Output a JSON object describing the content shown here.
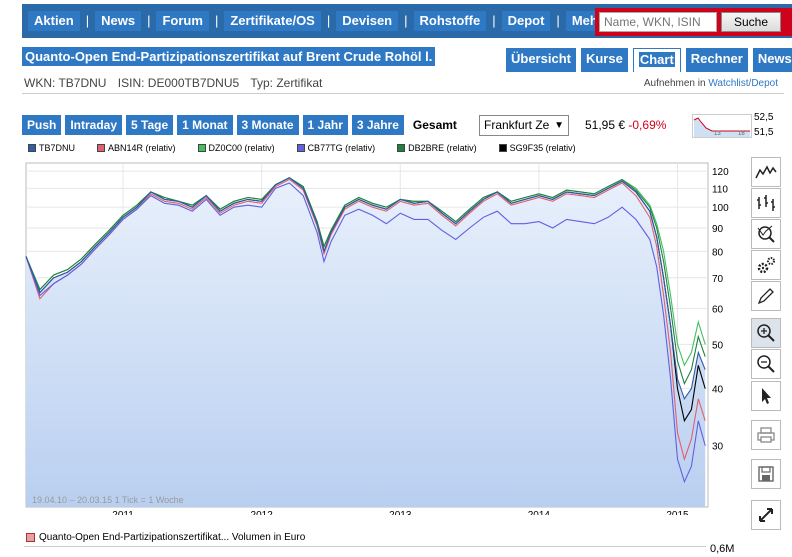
{
  "nav": {
    "items": [
      "Aktien",
      "News",
      "Forum",
      "Zertifikate/OS",
      "Devisen",
      "Rohstoffe",
      "Depot",
      "Mehr"
    ],
    "search_placeholder": "Name, WKN, ISIN",
    "search_button": "Suche",
    "bg_color": "#2b6aa8",
    "search_border_color": "#d0021b"
  },
  "header": {
    "title": "Quanto-Open End-Partizipationszertifikat auf Brent Crude Rohöl l.",
    "tabs": [
      {
        "label": "Übersicht",
        "active": false
      },
      {
        "label": "Kurse",
        "active": false
      },
      {
        "label": "Chart",
        "active": true
      },
      {
        "label": "Rechner",
        "active": false
      },
      {
        "label": "News",
        "active": false
      }
    ],
    "wkn": "WKN: TB7DNU",
    "isin": "ISIN: DE000TB7DNU5",
    "typ": "Typ: Zertifikat",
    "watchlist_prefix": "Aufnehmen in",
    "watchlist_link": "Watchlist/Depot"
  },
  "range": {
    "buttons": [
      {
        "label": "Push",
        "active": false
      },
      {
        "label": "Intraday",
        "active": false
      },
      {
        "label": "5 Tage",
        "active": false
      },
      {
        "label": "1 Monat",
        "active": false
      },
      {
        "label": "3 Monate",
        "active": false
      },
      {
        "label": "1 Jahr",
        "active": false
      },
      {
        "label": "3 Jahre",
        "active": false
      },
      {
        "label": "Gesamt",
        "active": true
      }
    ],
    "exchange": "Frankfurt Ze",
    "price": "51,95 €",
    "change": "-0,69%",
    "spark_high": "52,5",
    "spark_low": "51,5",
    "spark_ticks": [
      "13",
      "18"
    ]
  },
  "chart_data": {
    "type": "line",
    "legend": [
      {
        "label": "TB7DNU",
        "color": "#2f5da8"
      },
      {
        "label": "ABN14R (relativ)",
        "color": "#e06070"
      },
      {
        "label": "DZ0C00 (relativ)",
        "color": "#40c060"
      },
      {
        "label": "CB77TG (relativ)",
        "color": "#6060e0"
      },
      {
        "label": "DB2BRE (relativ)",
        "color": "#208040"
      },
      {
        "label": "SG9F35 (relativ)",
        "color": "#000000"
      }
    ],
    "x_ticks": [
      "2011",
      "2012",
      "2013",
      "2014",
      "2015"
    ],
    "y_ticks": [
      120,
      110,
      100,
      90,
      80,
      70,
      60,
      50,
      40,
      30
    ],
    "y_scale": "log",
    "ylim": [
      22,
      125
    ],
    "range_note": "19.04.10 – 20.03.15   1 Tick = 1 Woche",
    "x": [
      2010.3,
      2010.4,
      2010.5,
      2010.6,
      2010.7,
      2010.8,
      2010.9,
      2011.0,
      2011.1,
      2011.2,
      2011.3,
      2011.4,
      2011.5,
      2011.6,
      2011.7,
      2011.8,
      2011.9,
      2012.0,
      2012.1,
      2012.2,
      2012.3,
      2012.4,
      2012.45,
      2012.5,
      2012.6,
      2012.7,
      2012.8,
      2012.9,
      2013.0,
      2013.1,
      2013.2,
      2013.3,
      2013.4,
      2013.5,
      2013.6,
      2013.7,
      2013.8,
      2013.9,
      2014.0,
      2014.1,
      2014.2,
      2014.3,
      2014.4,
      2014.5,
      2014.6,
      2014.7,
      2014.8,
      2014.85,
      2014.9,
      2014.95,
      2015.0,
      2015.05,
      2015.1,
      2015.15,
      2015.2
    ],
    "series": [
      {
        "name": "SG9F35 (relativ)",
        "color": "#000000",
        "values": [
          78,
          65,
          70,
          72,
          76,
          82,
          88,
          95,
          100,
          108,
          104,
          103,
          100,
          106,
          98,
          102,
          104,
          103,
          112,
          116,
          110,
          92,
          80,
          88,
          100,
          104,
          101,
          99,
          104,
          102,
          103,
          97,
          92,
          98,
          104,
          108,
          102,
          104,
          106,
          104,
          108,
          107,
          106,
          110,
          114,
          108,
          98,
          86,
          70,
          55,
          40,
          34,
          36,
          45,
          40
        ]
      },
      {
        "name": "DZ0C00 (relativ)",
        "color": "#40c060",
        "values": [
          78,
          66,
          71,
          73,
          77,
          83,
          89,
          96,
          101,
          108,
          105,
          103,
          101,
          106,
          99,
          103,
          105,
          104,
          112,
          116,
          111,
          93,
          82,
          89,
          101,
          105,
          102,
          100,
          104,
          103,
          103,
          98,
          93,
          99,
          105,
          108,
          103,
          105,
          107,
          105,
          109,
          108,
          107,
          111,
          115,
          110,
          101,
          92,
          80,
          64,
          50,
          45,
          48,
          56,
          50
        ]
      },
      {
        "name": "DB2BRE (relativ)",
        "color": "#208040",
        "values": [
          78,
          66,
          71,
          73,
          77,
          83,
          89,
          96,
          101,
          108,
          105,
          103,
          101,
          106,
          99,
          103,
          105,
          104,
          112,
          116,
          111,
          93,
          82,
          89,
          101,
          105,
          102,
          100,
          104,
          103,
          103,
          98,
          93,
          99,
          105,
          108,
          103,
          105,
          107,
          105,
          109,
          108,
          107,
          111,
          115,
          109,
          100,
          90,
          76,
          60,
          46,
          41,
          44,
          52,
          47
        ]
      },
      {
        "name": "ABN14R (relativ)",
        "color": "#e06070",
        "values": [
          78,
          63,
          68,
          71,
          75,
          81,
          87,
          94,
          99,
          107,
          103,
          102,
          99,
          105,
          97,
          101,
          103,
          102,
          111,
          115,
          109,
          91,
          79,
          87,
          99,
          103,
          100,
          98,
          103,
          101,
          102,
          96,
          91,
          97,
          103,
          107,
          101,
          103,
          105,
          103,
          107,
          106,
          105,
          109,
          113,
          106,
          95,
          82,
          64,
          48,
          32,
          28,
          31,
          38,
          34
        ]
      },
      {
        "name": "CB77TG (relativ)",
        "color": "#6060e0",
        "values": [
          78,
          64,
          68,
          71,
          75,
          81,
          87,
          94,
          99,
          106,
          102,
          101,
          98,
          104,
          96,
          100,
          101,
          100,
          110,
          113,
          106,
          88,
          76,
          84,
          96,
          99,
          96,
          92,
          97,
          94,
          94,
          89,
          85,
          90,
          95,
          98,
          92,
          92,
          93,
          90,
          94,
          93,
          92,
          95,
          100,
          94,
          85,
          74,
          58,
          42,
          28,
          25,
          27,
          34,
          30
        ]
      },
      {
        "name": "TB7DNU",
        "color": "#2f5da8",
        "values": [
          78,
          65,
          70,
          72,
          76,
          82,
          88,
          95,
          100,
          108,
          104,
          103,
          100,
          106,
          98,
          102,
          104,
          103,
          112,
          116,
          110,
          92,
          80,
          88,
          100,
          104,
          101,
          99,
          104,
          102,
          103,
          97,
          92,
          98,
          104,
          108,
          102,
          104,
          106,
          104,
          108,
          107,
          106,
          110,
          114,
          108,
          98,
          86,
          70,
          55,
          42,
          38,
          40,
          48,
          44
        ]
      }
    ],
    "volume_label": "Quanto-Open End-Partizipationszertifikat... Volumen in Euro",
    "volume_axis": "0,6M"
  },
  "tools": {
    "icons": [
      "line-chart-icon",
      "ohlc-chart-icon",
      "magnifier-chart-icon",
      "gears-icon",
      "pencil-icon",
      "zoom-in-icon",
      "zoom-out-icon",
      "pointer-icon",
      "print-icon",
      "save-icon",
      "fullscreen-icon"
    ]
  }
}
